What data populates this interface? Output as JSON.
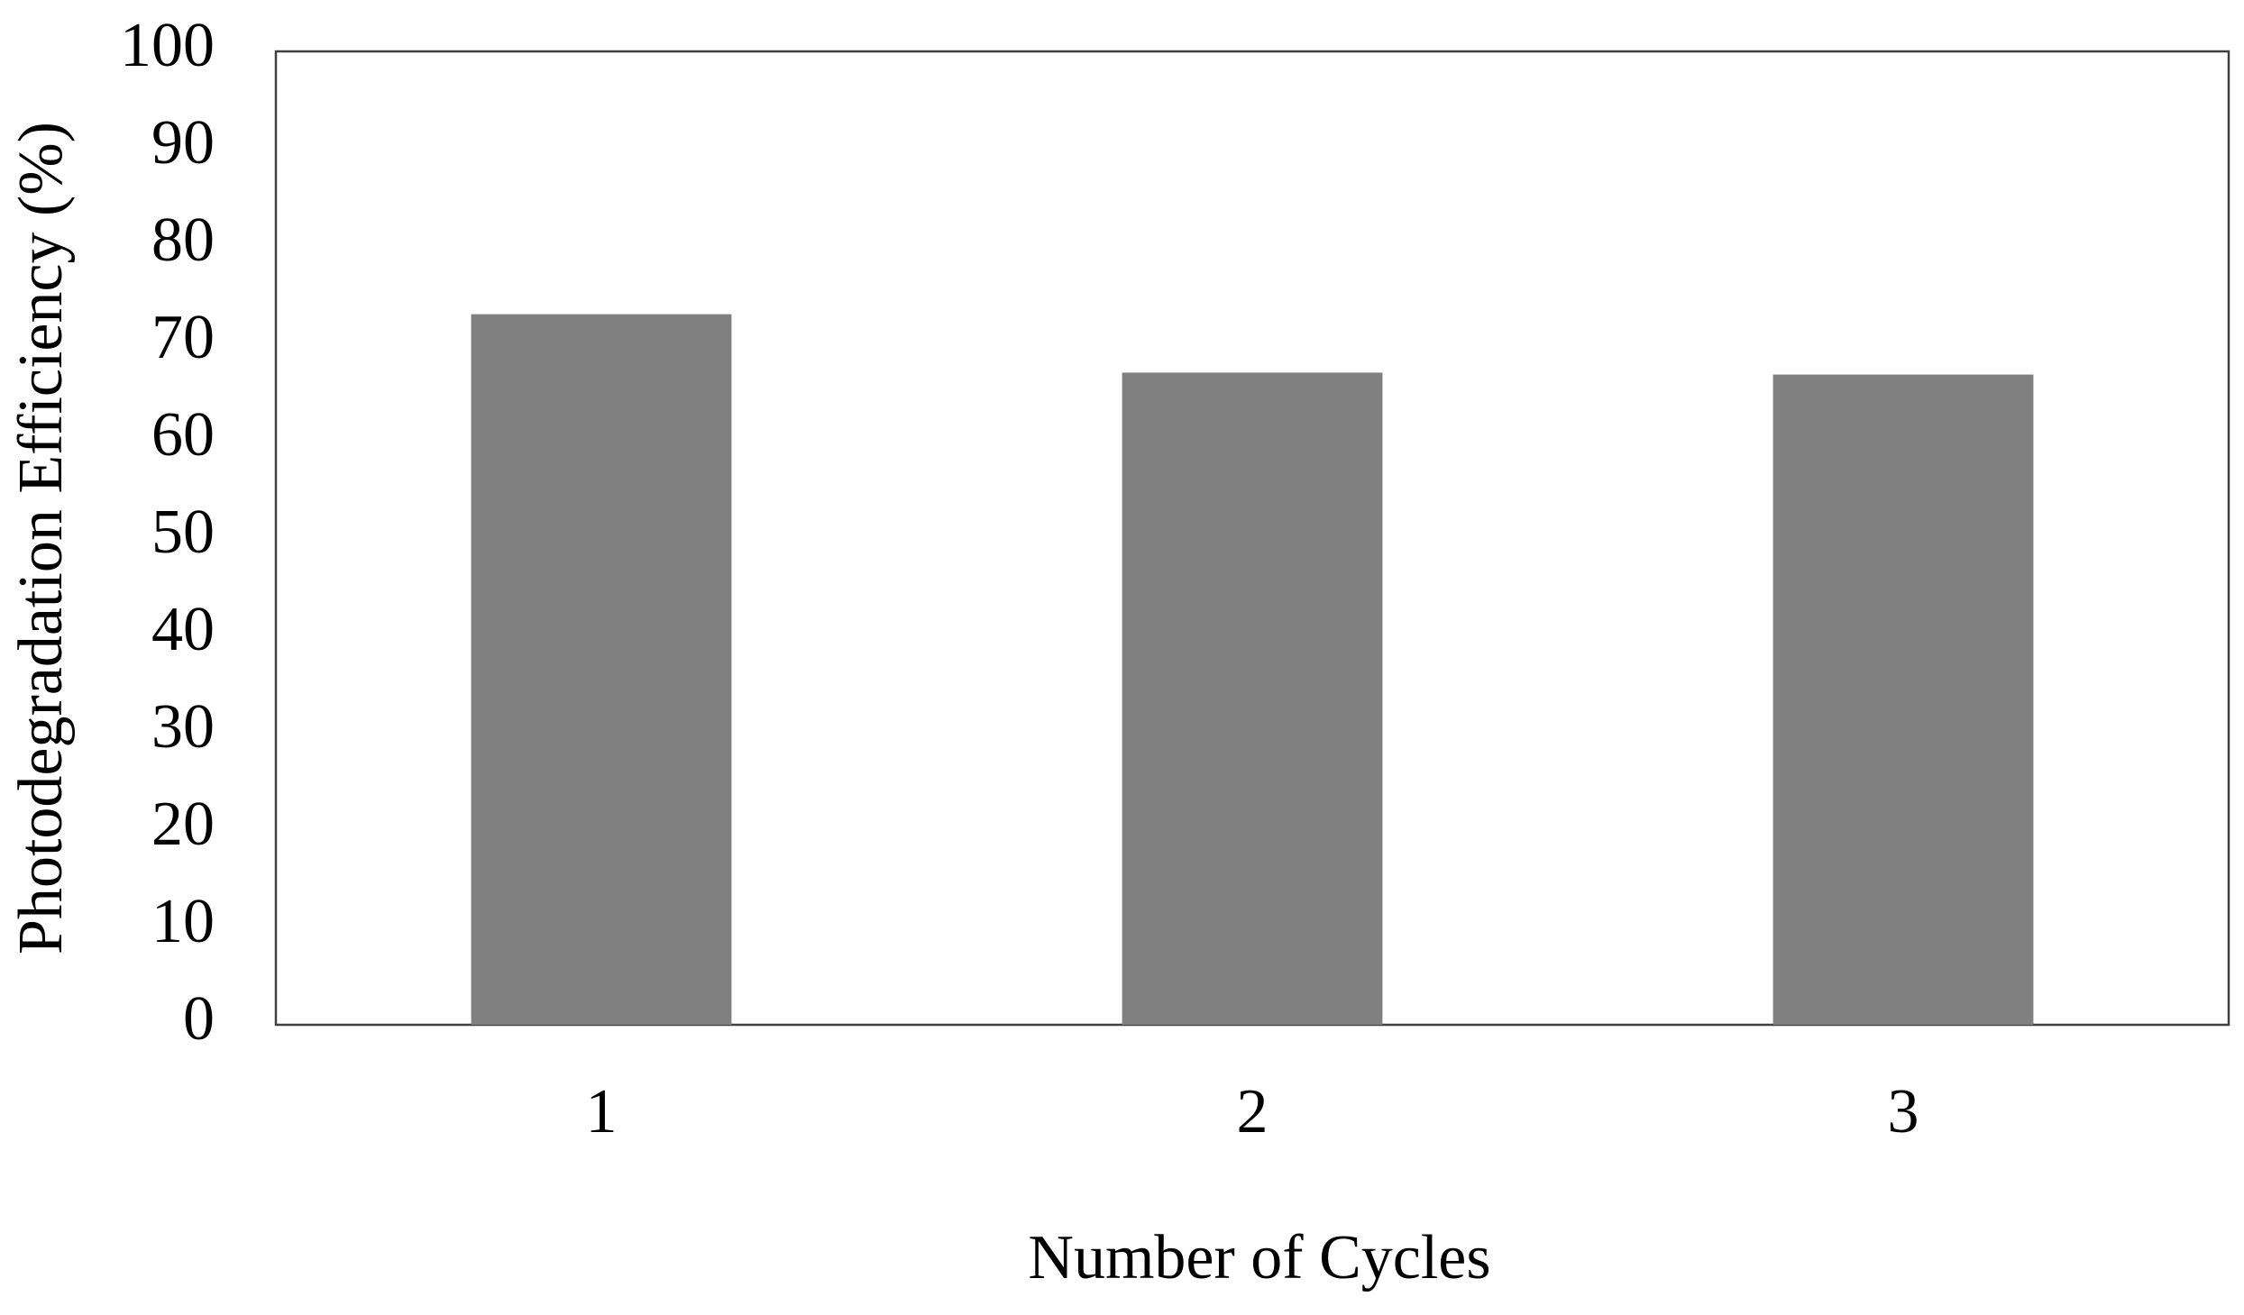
{
  "chart_data": {
    "type": "bar",
    "xlabel": "Number of Cycles",
    "ylabel": "Photodegradation Efficiency (%)",
    "categories": [
      "1",
      "2",
      "3"
    ],
    "values": [
      73,
      67,
      66.8
    ],
    "color": "#808080",
    "ylim": [
      0,
      100
    ],
    "yticks": [
      0,
      10,
      20,
      30,
      40,
      50,
      60,
      70,
      80,
      90,
      100
    ],
    "grid": false
  }
}
